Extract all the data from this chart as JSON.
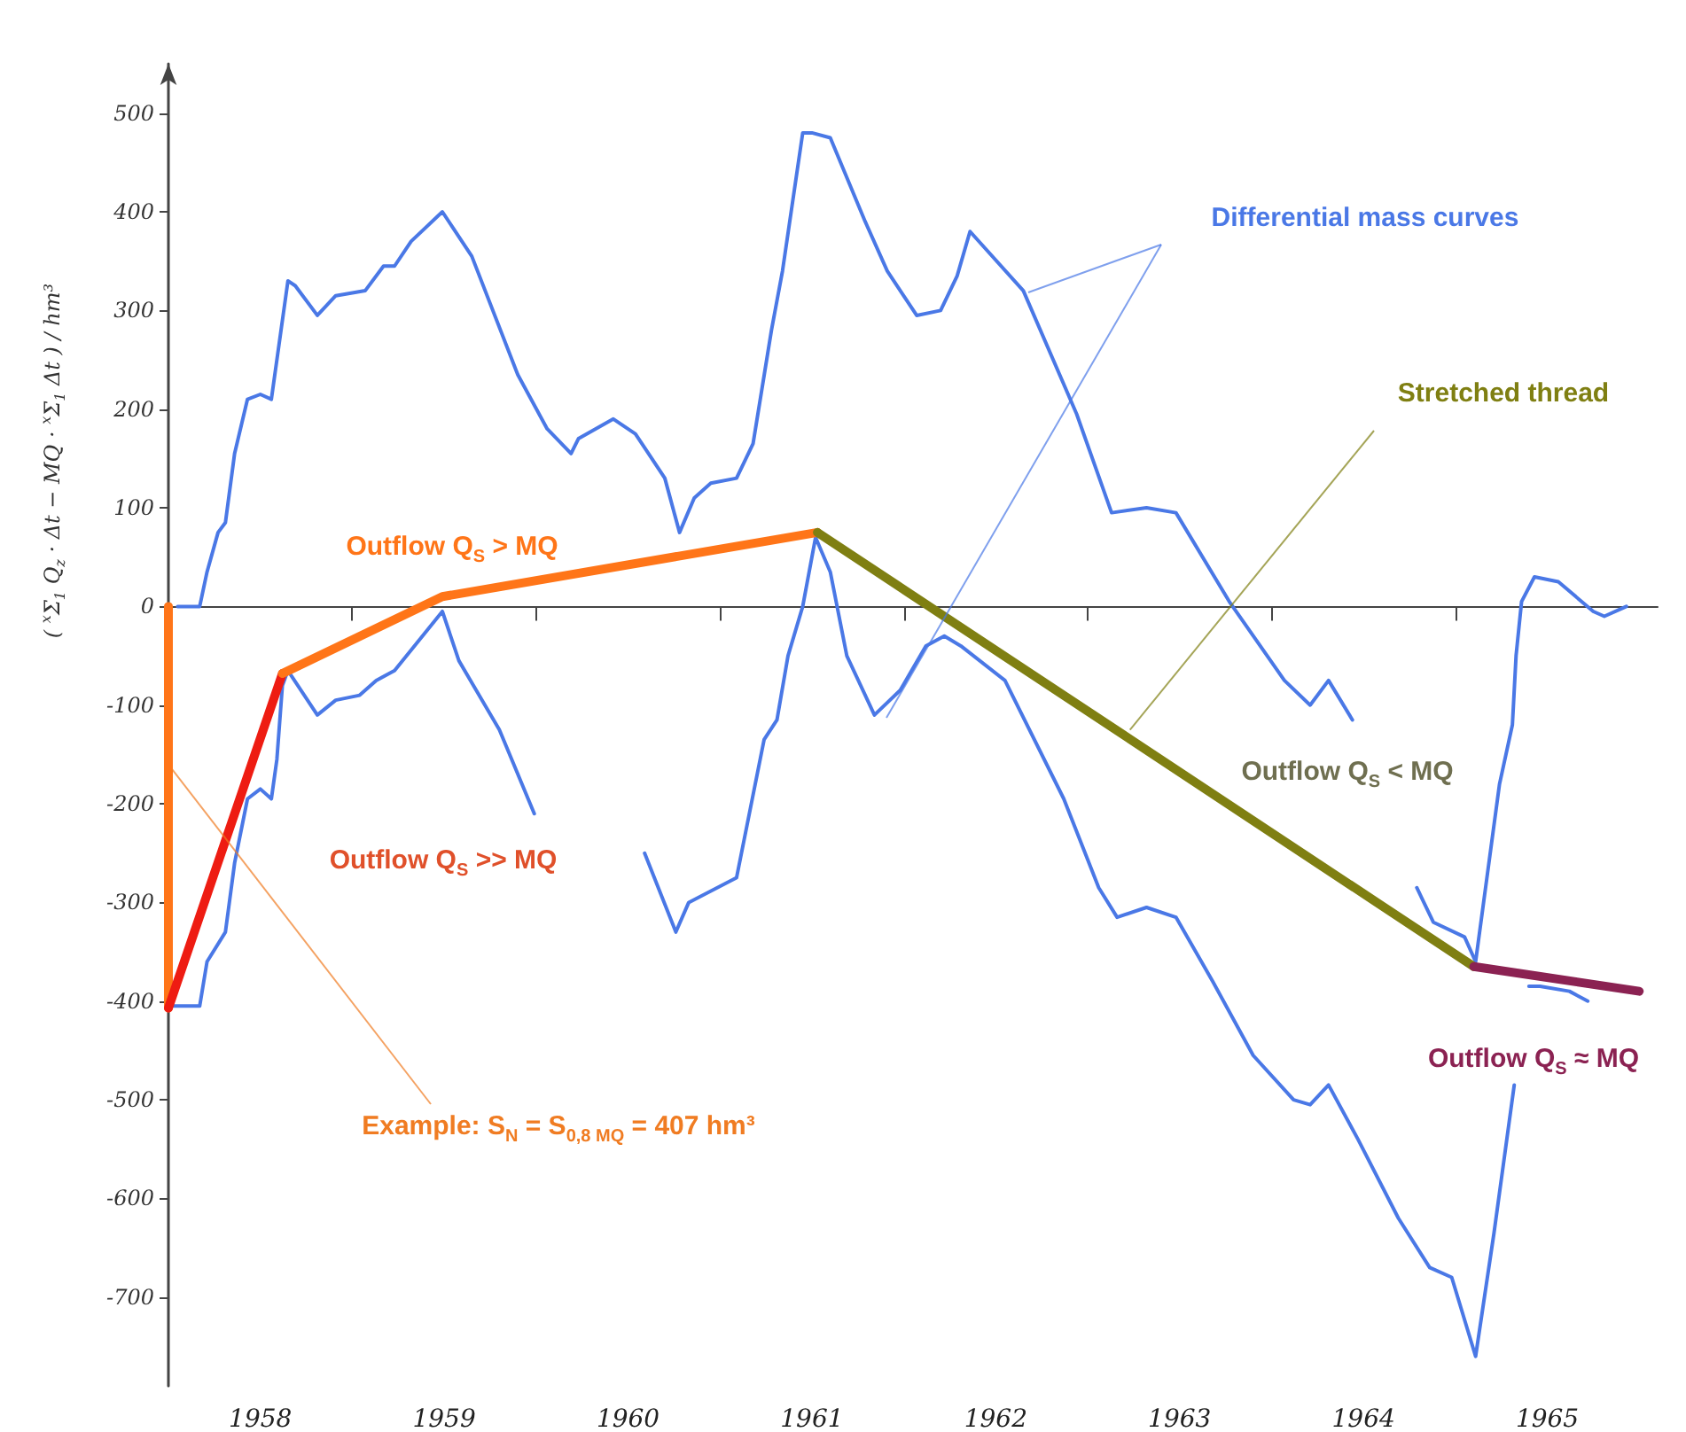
{
  "chart_data": {
    "type": "line",
    "ylabel": "( $^{x}$Σ$_{1}$ Q$_{z}$ · Δt − MQ · $^{x}$Σ$_{1}$ Δt ) / hm³",
    "xlim": [
      1958,
      1966.1
    ],
    "ylim": [
      -790,
      550
    ],
    "xticks": [
      {
        "value": 1958.5,
        "label": "1958"
      },
      {
        "value": 1959,
        "label": null
      },
      {
        "value": 1959.5,
        "label": "1959"
      },
      {
        "value": 1960,
        "label": null
      },
      {
        "value": 1960.5,
        "label": "1960"
      },
      {
        "value": 1961,
        "label": null
      },
      {
        "value": 1961.5,
        "label": "1961"
      },
      {
        "value": 1962,
        "label": null
      },
      {
        "value": 1962.5,
        "label": "1962"
      },
      {
        "value": 1963,
        "label": null
      },
      {
        "value": 1963.5,
        "label": "1963"
      },
      {
        "value": 1964,
        "label": null
      },
      {
        "value": 1964.5,
        "label": "1964"
      },
      {
        "value": 1965,
        "label": null
      },
      {
        "value": 1965.5,
        "label": "1965"
      }
    ],
    "yticks": [
      -700,
      -600,
      -500,
      -400,
      -300,
      -200,
      -100,
      0,
      100,
      200,
      300,
      400,
      500
    ],
    "marker": "none",
    "line_style": "solid",
    "series": [
      {
        "color": "#4a78e6",
        "x": [
          1958.05,
          1958.17,
          1958.21,
          1958.27,
          1958.31,
          1958.36,
          1958.43,
          1958.5,
          1958.56,
          1958.65,
          1958.69,
          1958.81,
          1958.91,
          1959.07,
          1959.17,
          1959.23,
          1959.32,
          1959.49,
          1959.65,
          1959.9,
          1960.06,
          1960.19,
          1960.23,
          1960.42,
          1960.54,
          1960.7,
          1960.78,
          1960.86,
          1960.95,
          1961.09,
          1961.18,
          1961.28,
          1961.34,
          1961.45,
          1961.5,
          1961.6,
          1961.79,
          1961.91,
          1962.07,
          1962.2,
          1962.29,
          1962.36,
          1962.65,
          1962.94,
          1963.13,
          1963.32,
          1963.48,
          1963.77,
          1964.07,
          1964.21,
          1964.31,
          1964.44,
          1964.57,
          1964.79,
          1964.88,
          1965.05,
          1965.11,
          1965.24,
          1965.31,
          1965.33,
          1965.36,
          1965.43,
          1965.56,
          1965.75,
          1965.81,
          1965.93
        ],
        "values": [
          0,
          0,
          35,
          75,
          85,
          155,
          210,
          215,
          210,
          330,
          325,
          295,
          315,
          320,
          345,
          345,
          370,
          400,
          355,
          235,
          180,
          155,
          170,
          190,
          175,
          130,
          75,
          110,
          125,
          130,
          165,
          280,
          340,
          480,
          480,
          475,
          390,
          340,
          295,
          300,
          335,
          380,
          320,
          195,
          95,
          100,
          95,
          5,
          -75,
          -100,
          -75,
          -115,
          null,
          -285,
          -320,
          -335,
          -360,
          -180,
          -120,
          -50,
          5,
          30,
          25,
          -5,
          -10,
          0
        ]
      },
      {
        "color": "#4a78e6",
        "x": [
          1958.02,
          1958.17,
          1958.21,
          1958.31,
          1958.36,
          1958.43,
          1958.5,
          1958.56,
          1958.59,
          1958.62,
          1958.65,
          1958.81,
          1958.91,
          1959.04,
          1959.13,
          1959.23,
          1959.49,
          1959.58,
          1959.8,
          1959.99,
          1960.3,
          1960.59,
          1960.76,
          1960.83,
          1961.09,
          1961.24,
          1961.31,
          1961.37,
          1961.45,
          1961.52,
          1961.6,
          1961.69,
          1961.84,
          1961.98,
          1962.12,
          1962.22,
          1962.31,
          1962.55,
          1962.87,
          1963.06,
          1963.16,
          1963.32,
          1963.48,
          1963.68,
          1963.9,
          1964.12,
          1964.21,
          1964.31,
          1964.47,
          1964.69,
          1964.86,
          1964.98,
          1965.11,
          1965.21,
          1965.32,
          1965.35,
          1965.4,
          1965.46,
          1965.62,
          1965.72
        ],
        "values": [
          -405,
          -405,
          -360,
          -330,
          -260,
          -195,
          -185,
          -195,
          -155,
          -80,
          -65,
          -110,
          -95,
          -90,
          -75,
          -65,
          -5,
          -55,
          -125,
          -210,
          null,
          -250,
          -330,
          -300,
          -275,
          -135,
          -115,
          -50,
          0,
          70,
          35,
          -50,
          -110,
          -85,
          -40,
          -30,
          -40,
          -75,
          -195,
          -285,
          -315,
          -305,
          -315,
          -380,
          -455,
          -500,
          -505,
          -485,
          -540,
          -620,
          -670,
          -680,
          -760,
          -635,
          -485,
          null,
          -385,
          -385,
          -390,
          -400
        ]
      },
      {
        "color": "#ff7518",
        "x": [
          1958,
          1958
        ],
        "values": [
          0,
          -407
        ]
      },
      {
        "color": "#ee1c12",
        "x": [
          1958,
          1958.62
        ],
        "values": [
          -407,
          -68
        ]
      },
      {
        "color": "#ff7518",
        "x": [
          1958.62,
          1959.49,
          1961.53
        ],
        "values": [
          -68,
          10,
          75
        ]
      },
      {
        "color": "#7f7f12",
        "x": [
          1961.53,
          1965.1
        ],
        "values": [
          75,
          -365
        ]
      },
      {
        "color": "#8b2252",
        "x": [
          1965.1,
          1966.0
        ],
        "values": [
          -365,
          -390
        ]
      }
    ],
    "annotations": [
      "Differential mass curves",
      {
        "text": "Stretched thread",
        "x": 1963.23,
        "y": -125
      },
      "Outflow Q$_{S}$ > MQ",
      "Outflow Q$_{S}$ >> MQ",
      "Outflow Q$_{S}$ < MQ",
      "Outflow Q$_{S}$ ≈ MQ",
      {
        "text": "Example: S$_{N}$ = S$_{0,8 MQ}$ = 407 hm³",
        "x": 1958.02,
        "y": -165
      }
    ]
  }
}
